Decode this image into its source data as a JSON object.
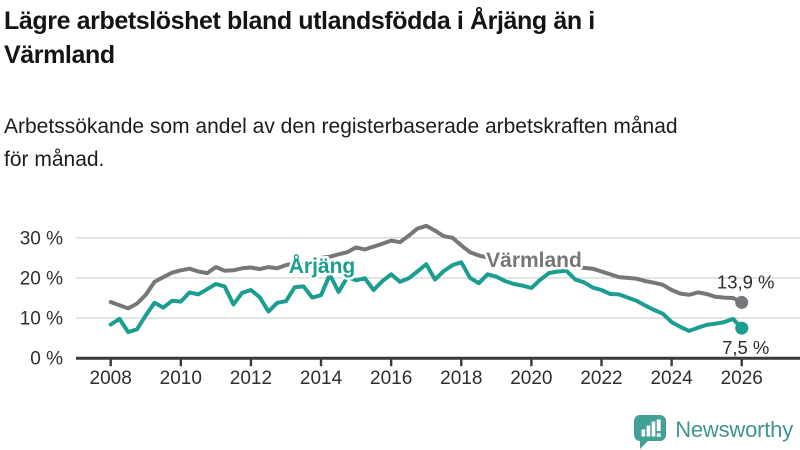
{
  "header": {
    "title_lines": [
      "Lägre arbetslöshet bland utlandsfödda i Årjäng än i",
      "Värmland"
    ],
    "subtitle_lines": [
      "Arbetssökande som andel av den registerbaserade arbetskraften månad",
      "för månad."
    ]
  },
  "footer": {
    "brand": "Newsworthy"
  },
  "colors": {
    "arjang_teal": "#1b9e90",
    "varmland_gray": "#77777b",
    "axis": "#3a3a3a",
    "grid": "#d8d8d8",
    "tick_text": "#2e2e2e",
    "value_text": "#2d2d2d",
    "brand_text_teal": "#3e968e",
    "brand_icon_teal": "#43a096"
  },
  "chart_data": {
    "type": "line",
    "title": "Lägre arbetslöshet bland utlandsfödda i Årjäng än i Värmland",
    "subtitle": "Arbetssökande som andel av den registerbaserade arbetskraften månad för månad.",
    "xlabel": "",
    "ylabel": "",
    "grid": "horizontal",
    "legend_position": "inline-labels",
    "x_range": [
      2008,
      2026.4
    ],
    "ylim": [
      0,
      34
    ],
    "y_axis": {
      "ticks": [
        {
          "v": 0,
          "label": "0 %"
        },
        {
          "v": 10,
          "label": "10 %"
        },
        {
          "v": 20,
          "label": "20 %"
        },
        {
          "v": 30,
          "label": "30 %"
        }
      ]
    },
    "x_axis": {
      "ticks": [
        {
          "v": 2008,
          "label": "2008"
        },
        {
          "v": 2010,
          "label": "2010"
        },
        {
          "v": 2012,
          "label": "2012"
        },
        {
          "v": 2014,
          "label": "2014"
        },
        {
          "v": 2016,
          "label": "2016"
        },
        {
          "v": 2018,
          "label": "2018"
        },
        {
          "v": 2020,
          "label": "2020"
        },
        {
          "v": 2022,
          "label": "2022"
        },
        {
          "v": 2024,
          "label": "2024"
        },
        {
          "v": 2026,
          "label": "2026"
        }
      ]
    },
    "x": [
      2008,
      2008.25,
      2008.5,
      2008.75,
      2009,
      2009.25,
      2009.5,
      2009.75,
      2010,
      2010.25,
      2010.5,
      2010.75,
      2011,
      2011.25,
      2011.5,
      2011.75,
      2012,
      2012.25,
      2012.5,
      2012.75,
      2013,
      2013.25,
      2013.5,
      2013.75,
      2014,
      2014.25,
      2014.5,
      2014.75,
      2015,
      2015.25,
      2015.5,
      2015.75,
      2016,
      2016.25,
      2016.5,
      2016.75,
      2017,
      2017.25,
      2017.5,
      2017.75,
      2018,
      2018.25,
      2018.5,
      2018.75,
      2019,
      2019.25,
      2019.5,
      2019.75,
      2020,
      2020.25,
      2020.5,
      2020.75,
      2021,
      2021.25,
      2021.5,
      2021.75,
      2022,
      2022.25,
      2022.5,
      2022.75,
      2023,
      2023.25,
      2023.5,
      2023.75,
      2024,
      2024.25,
      2024.5,
      2024.75,
      2025,
      2025.25,
      2025.5,
      2025.75,
      2026
    ],
    "series": [
      {
        "name": "Värmland",
        "color": "#77777b",
        "end_label": "13,9 %",
        "end_value": 13.9,
        "values": [
          14.0,
          13.2,
          12.4,
          13.6,
          15.8,
          19.0,
          20.2,
          21.3,
          21.9,
          22.3,
          21.6,
          21.2,
          22.7,
          21.8,
          21.9,
          22.4,
          22.6,
          22.2,
          22.7,
          22.4,
          23.2,
          23.6,
          23.4,
          24.2,
          25.0,
          25.3,
          25.9,
          26.4,
          27.6,
          27.1,
          27.8,
          28.5,
          29.3,
          28.9,
          30.5,
          32.3,
          33.0,
          31.8,
          30.4,
          30.0,
          28.1,
          26.4,
          25.6,
          25.1,
          24.6,
          24.1,
          23.7,
          23.3,
          23.2,
          23.7,
          23.9,
          23.6,
          23.1,
          22.7,
          22.5,
          22.3,
          21.6,
          20.9,
          20.2,
          20.0,
          19.8,
          19.2,
          18.8,
          18.3,
          17.0,
          16.1,
          15.8,
          16.4,
          16.0,
          15.3,
          15.1,
          15.0,
          13.9
        ]
      },
      {
        "name": "Årjäng",
        "color": "#1b9e90",
        "end_label": "7,5 %",
        "end_value": 7.5,
        "values": [
          8.4,
          9.8,
          6.5,
          7.2,
          10.7,
          13.8,
          12.6,
          14.3,
          14.1,
          16.4,
          15.9,
          17.2,
          18.5,
          17.9,
          13.4,
          16.3,
          17.0,
          15.2,
          11.6,
          13.8,
          14.2,
          17.7,
          17.9,
          15.1,
          15.7,
          20.8,
          16.5,
          20.2,
          19.4,
          19.9,
          17.0,
          19.2,
          20.9,
          19.0,
          19.9,
          21.6,
          23.4,
          19.6,
          21.7,
          23.2,
          23.9,
          20.0,
          18.7,
          20.9,
          20.3,
          19.2,
          18.5,
          18.1,
          17.5,
          19.5,
          21.2,
          21.6,
          21.8,
          19.6,
          18.9,
          17.6,
          17.0,
          16.0,
          15.9,
          15.1,
          14.3,
          13.1,
          12.0,
          11.1,
          9.0,
          7.8,
          6.8,
          7.6,
          8.3,
          8.6,
          9.0,
          9.8,
          7.5
        ]
      }
    ]
  }
}
